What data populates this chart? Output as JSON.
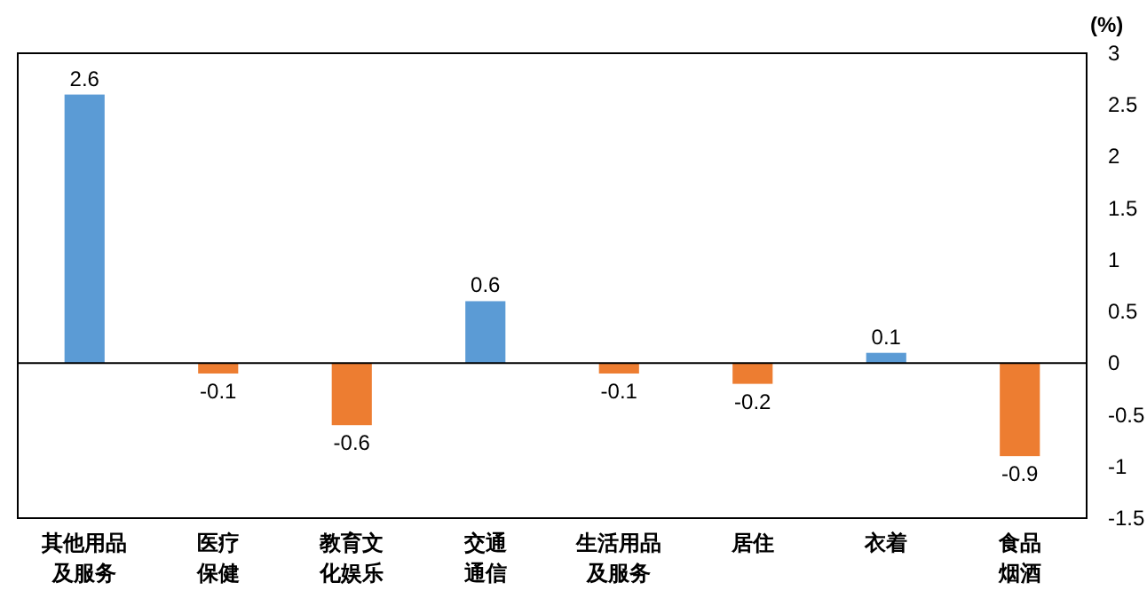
{
  "chart_data": {
    "type": "bar",
    "ylabel": "(%)",
    "categories": [
      "其他用品及服务",
      "医疗保健",
      "教育文化娱乐",
      "交通通信",
      "生活用品及服务",
      "居住",
      "衣着",
      "食品烟酒"
    ],
    "values": [
      2.6,
      -0.1,
      -0.6,
      0.6,
      -0.1,
      -0.2,
      0.1,
      -0.9
    ],
    "colors": [
      "#5b9bd5",
      "#ed7d31",
      "#ed7d31",
      "#5b9bd5",
      "#ed7d31",
      "#ed7d31",
      "#5b9bd5",
      "#ed7d31"
    ],
    "ylim": [
      -1.5,
      3
    ],
    "yticks": [
      3,
      2.5,
      2,
      1.5,
      1,
      0.5,
      0,
      -0.5,
      -1,
      -1.5
    ],
    "data_labels": true
  }
}
